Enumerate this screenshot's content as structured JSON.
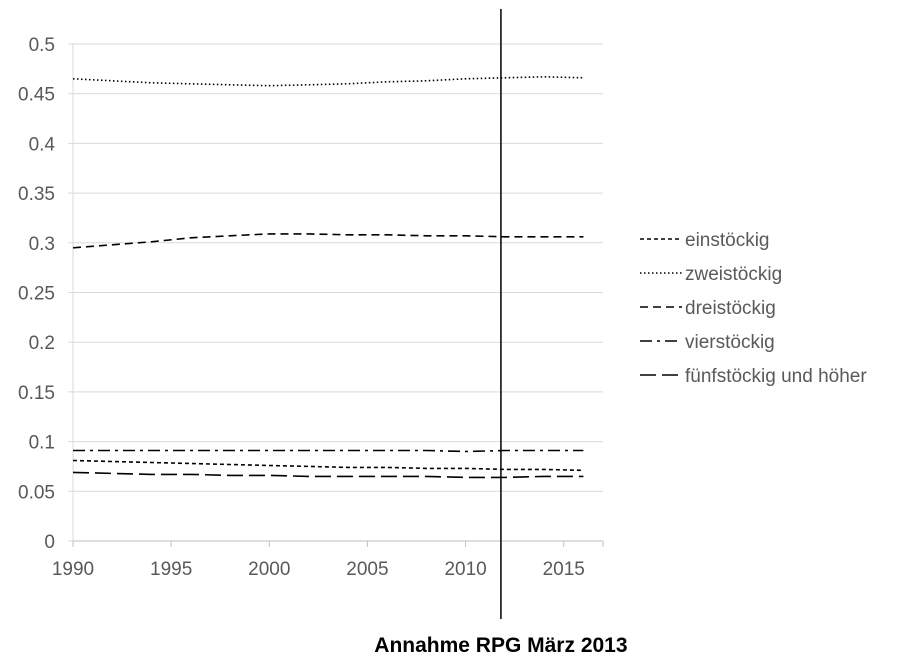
{
  "chart_data": {
    "type": "line",
    "x": [
      1990,
      1992,
      1994,
      1996,
      1998,
      2000,
      2002,
      2004,
      2006,
      2008,
      2010,
      2012,
      2014,
      2016
    ],
    "series": [
      {
        "name": "einstöckig",
        "dash": "4,3",
        "values": [
          0.081,
          0.08,
          0.079,
          0.078,
          0.077,
          0.076,
          0.075,
          0.074,
          0.074,
          0.073,
          0.073,
          0.072,
          0.072,
          0.071
        ]
      },
      {
        "name": "zweistöckig",
        "dash": "1.5,2.5",
        "values": [
          0.465,
          0.463,
          0.461,
          0.46,
          0.459,
          0.458,
          0.459,
          0.46,
          0.462,
          0.463,
          0.465,
          0.466,
          0.467,
          0.466
        ]
      },
      {
        "name": "dreistöckig",
        "dash": "8,5",
        "values": [
          0.295,
          0.298,
          0.301,
          0.305,
          0.307,
          0.309,
          0.309,
          0.308,
          0.308,
          0.307,
          0.307,
          0.306,
          0.306,
          0.306
        ]
      },
      {
        "name": "vierstöckig",
        "dash": "12,5,3,5",
        "values": [
          0.091,
          0.091,
          0.091,
          0.091,
          0.091,
          0.091,
          0.091,
          0.091,
          0.091,
          0.091,
          0.09,
          0.091,
          0.091,
          0.091
        ]
      },
      {
        "name": "fünfstöckig und höher",
        "dash": "16,6",
        "values": [
          0.069,
          0.068,
          0.067,
          0.067,
          0.066,
          0.066,
          0.065,
          0.065,
          0.065,
          0.065,
          0.064,
          0.064,
          0.065,
          0.065
        ]
      }
    ],
    "xlim": [
      1990,
      2017
    ],
    "ylim": [
      0,
      0.5
    ],
    "x_ticks": [
      1990,
      1995,
      2000,
      2005,
      2010,
      2015
    ],
    "y_ticks": [
      0,
      0.05,
      0.1,
      0.15,
      0.2,
      0.25,
      0.3,
      0.35,
      0.4,
      0.45,
      0.5
    ],
    "y_tick_labels": [
      "0",
      "0.05",
      "0.1",
      "0.15",
      "0.2",
      "0.25",
      "0.3",
      "0.35",
      "0.4",
      "0.45",
      "0.5"
    ],
    "grid": true,
    "legend_position": "right",
    "annotation": {
      "x": 2011.8,
      "label": "Annahme RPG März 2013"
    },
    "line_color": "#000000",
    "grid_color": "#d9d9d9",
    "tick_color": "#595959"
  }
}
